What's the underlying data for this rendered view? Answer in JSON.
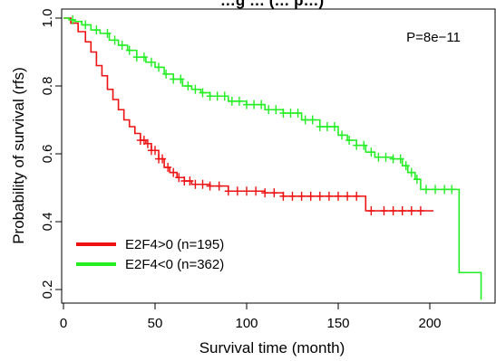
{
  "chart_data": {
    "type": "line",
    "title": "…g … (… p…)",
    "xlabel": "Survival time (month)",
    "ylabel": "Probability of survival (rfs)",
    "xlim": [
      0,
      230
    ],
    "ylim": [
      0.17,
      1.0
    ],
    "x_ticks": [
      "0",
      "50",
      "100",
      "150",
      "200"
    ],
    "y_ticks": [
      "0.2",
      "0.4",
      "0.6",
      "0.8",
      "1.0"
    ],
    "annotation": "P=8e−11",
    "legend_position": "bottom-left",
    "series": [
      {
        "name": "E2F4>0 (n=195)",
        "color": "#ee1111",
        "points": [
          [
            0,
            1.0
          ],
          [
            4,
            0.985
          ],
          [
            8,
            0.96
          ],
          [
            12,
            0.93
          ],
          [
            15,
            0.9
          ],
          [
            18,
            0.86
          ],
          [
            21,
            0.83
          ],
          [
            24,
            0.79
          ],
          [
            27,
            0.76
          ],
          [
            30,
            0.73
          ],
          [
            33,
            0.7
          ],
          [
            36,
            0.68
          ],
          [
            39,
            0.66
          ],
          [
            42,
            0.64
          ],
          [
            45,
            0.63
          ],
          [
            48,
            0.61
          ],
          [
            52,
            0.585
          ],
          [
            55,
            0.56
          ],
          [
            58,
            0.545
          ],
          [
            62,
            0.53
          ],
          [
            66,
            0.52
          ],
          [
            70,
            0.51
          ],
          [
            80,
            0.505
          ],
          [
            90,
            0.49
          ],
          [
            110,
            0.485
          ],
          [
            120,
            0.475
          ],
          [
            163,
            0.475
          ],
          [
            165,
            0.432
          ],
          [
            202,
            0.432
          ]
        ],
        "censor_x": [
          42,
          44,
          46,
          48,
          50,
          52,
          54,
          57,
          60,
          63,
          66,
          69,
          72,
          76,
          80,
          85,
          90,
          95,
          100,
          105,
          110,
          115,
          120,
          125,
          130,
          135,
          140,
          145,
          150,
          155,
          160,
          168,
          175,
          180,
          185,
          190,
          195
        ]
      },
      {
        "name": "E2F4<0 (n=362)",
        "color": "#22ee22",
        "points": [
          [
            0,
            1.0
          ],
          [
            3,
            0.995
          ],
          [
            6,
            0.99
          ],
          [
            10,
            0.98
          ],
          [
            15,
            0.965
          ],
          [
            20,
            0.955
          ],
          [
            25,
            0.935
          ],
          [
            30,
            0.92
          ],
          [
            35,
            0.905
          ],
          [
            40,
            0.885
          ],
          [
            45,
            0.87
          ],
          [
            50,
            0.855
          ],
          [
            55,
            0.835
          ],
          [
            60,
            0.82
          ],
          [
            65,
            0.8
          ],
          [
            70,
            0.79
          ],
          [
            75,
            0.78
          ],
          [
            80,
            0.77
          ],
          [
            90,
            0.755
          ],
          [
            100,
            0.745
          ],
          [
            110,
            0.73
          ],
          [
            120,
            0.72
          ],
          [
            130,
            0.7
          ],
          [
            140,
            0.68
          ],
          [
            150,
            0.655
          ],
          [
            155,
            0.64
          ],
          [
            160,
            0.625
          ],
          [
            165,
            0.605
          ],
          [
            170,
            0.59
          ],
          [
            180,
            0.585
          ],
          [
            185,
            0.565
          ],
          [
            188,
            0.545
          ],
          [
            192,
            0.525
          ],
          [
            195,
            0.495
          ],
          [
            216,
            0.495
          ],
          [
            216,
            0.25
          ],
          [
            228,
            0.25
          ],
          [
            228,
            0.17
          ]
        ],
        "censor_x": [
          5,
          12,
          18,
          24,
          28,
          32,
          36,
          40,
          44,
          48,
          52,
          56,
          60,
          64,
          68,
          72,
          76,
          80,
          84,
          88,
          92,
          96,
          100,
          104,
          108,
          112,
          116,
          120,
          124,
          128,
          132,
          136,
          140,
          144,
          148,
          152,
          156,
          160,
          164,
          168,
          172,
          176,
          180,
          184,
          187,
          190,
          193,
          198,
          203,
          208,
          212
        ]
      }
    ]
  }
}
